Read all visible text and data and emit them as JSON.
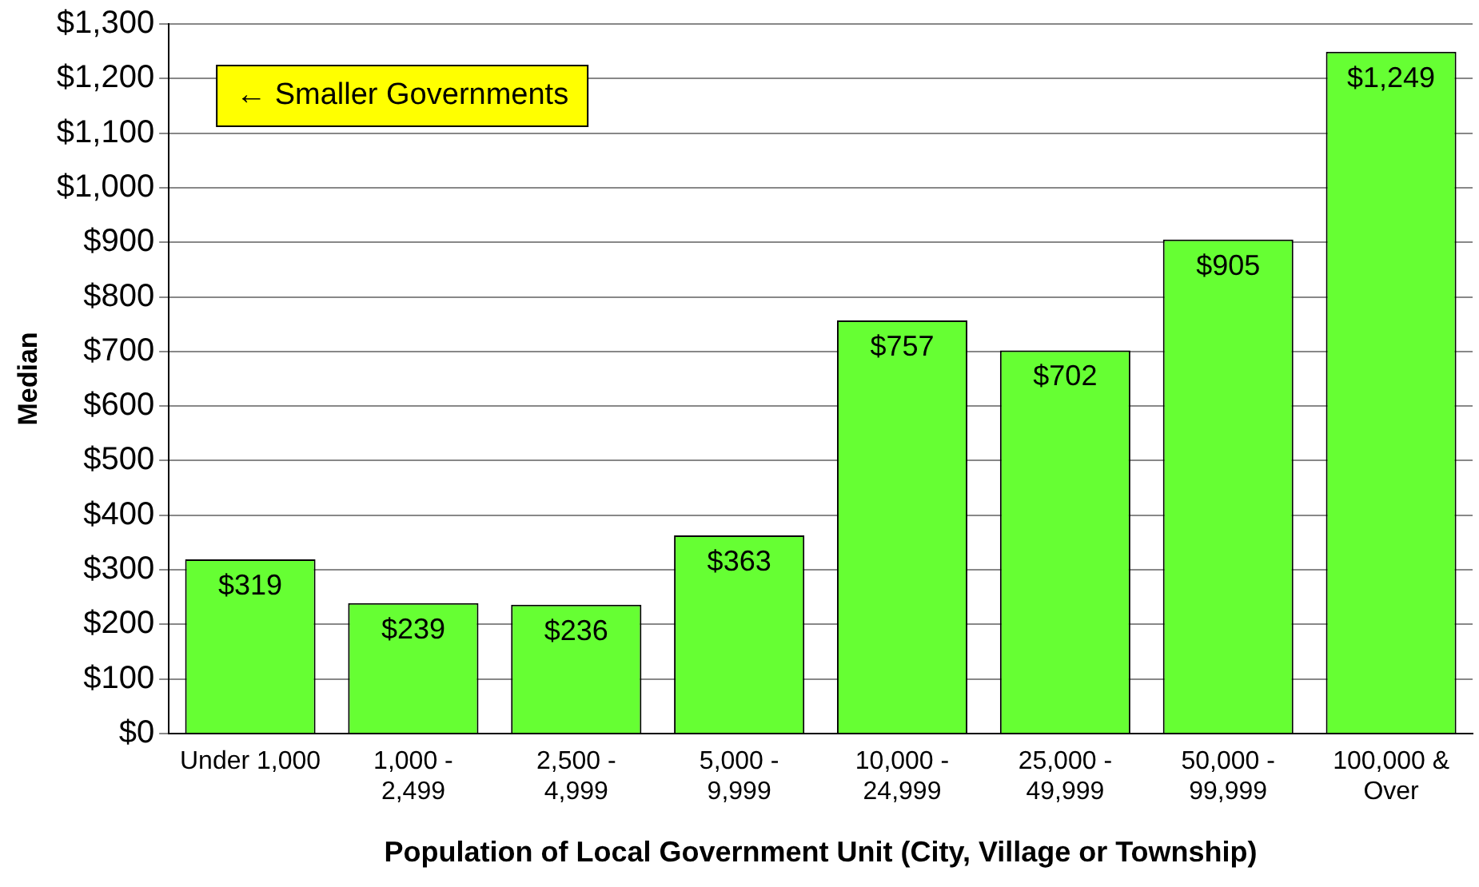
{
  "chart_data": {
    "type": "bar",
    "xlabel": "Population of Local Government Unit (City, Village or Township)",
    "ylabel": "Median",
    "categories": [
      "Under 1,000",
      "1,000 -\n2,499",
      "2,500 -\n4,999",
      "5,000 -\n9,999",
      "10,000 -\n24,999",
      "25,000 -\n49,999",
      "50,000 -\n99,999",
      "100,000 &\nOver"
    ],
    "values": [
      319,
      239,
      236,
      363,
      757,
      702,
      905,
      1249
    ],
    "value_labels": [
      "$319",
      "$239",
      "$236",
      "$363",
      "$757",
      "$702",
      "$905",
      "$1,249"
    ],
    "color": "#66ff33",
    "ylim": [
      0,
      1300
    ],
    "yticks": [
      {
        "value": 0,
        "label": "$0"
      },
      {
        "value": 100,
        "label": "$100"
      },
      {
        "value": 200,
        "label": "$200"
      },
      {
        "value": 300,
        "label": "$300"
      },
      {
        "value": 400,
        "label": "$400"
      },
      {
        "value": 500,
        "label": "$500"
      },
      {
        "value": 600,
        "label": "$600"
      },
      {
        "value": 700,
        "label": "$700"
      },
      {
        "value": 800,
        "label": "$800"
      },
      {
        "value": 900,
        "label": "$900"
      },
      {
        "value": 1000,
        "label": "$1,000"
      },
      {
        "value": 1100,
        "label": "$1,100"
      },
      {
        "value": 1200,
        "label": "$1,200"
      },
      {
        "value": 1300,
        "label": "$1,300"
      }
    ],
    "grid": "y",
    "legend": false,
    "annotations": [
      "← Smaller Governments"
    ]
  }
}
